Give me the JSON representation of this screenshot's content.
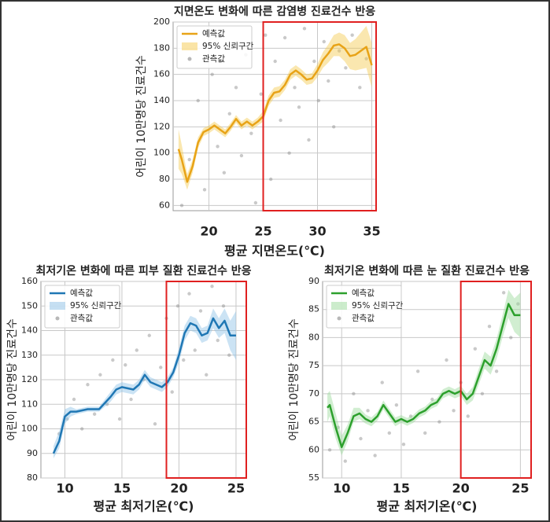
{
  "chart_data": [
    {
      "type": "line",
      "title": "지면온도 변화에 따른 감염병 진료건수 반응",
      "xlabel": "평균 지면온도(℃)",
      "ylabel": "어린이 10만명당 진료건수",
      "xlim": [
        16.7,
        35.4
      ],
      "ylim": [
        56,
        200
      ],
      "xticks": [
        20,
        25,
        30,
        35
      ],
      "yticks": [
        60,
        80,
        100,
        120,
        140,
        160,
        180,
        200
      ],
      "grid": true,
      "legend": "upper left",
      "highlight_from": 25,
      "highlight_color": "#e02020",
      "series": [
        {
          "name": "예측값",
          "type": "line",
          "color": "#e8a317",
          "x": [
            17.2,
            17.5,
            18,
            18.5,
            19,
            19.5,
            20,
            20.5,
            21,
            21.5,
            22,
            22.5,
            23,
            23.5,
            24,
            24.5,
            25,
            25.5,
            26,
            26.5,
            27,
            27.5,
            28,
            28.5,
            29,
            29.5,
            30,
            30.5,
            31,
            31.5,
            32,
            32.5,
            33,
            33.5,
            34,
            34.5,
            35
          ],
          "values": [
            103,
            95,
            78,
            90,
            108,
            116,
            118,
            121,
            118,
            115,
            120,
            126,
            121,
            124,
            121,
            124,
            128,
            140,
            146,
            147,
            152,
            160,
            163,
            160,
            156,
            157,
            163,
            171,
            176,
            182,
            183,
            180,
            174,
            175,
            178,
            181,
            167
          ]
        },
        {
          "name": "95% 신뢰구간",
          "type": "band",
          "color": "#f5c94e",
          "x": [
            17.2,
            17.5,
            18,
            18.5,
            19,
            19.5,
            20,
            20.5,
            21,
            21.5,
            22,
            22.5,
            23,
            23.5,
            24,
            24.5,
            25,
            25.5,
            26,
            26.5,
            27,
            27.5,
            28,
            28.5,
            29,
            29.5,
            30,
            30.5,
            31,
            31.5,
            32,
            32.5,
            33,
            33.5,
            34,
            34.5,
            35
          ],
          "lower": [
            88,
            84,
            72,
            85,
            104,
            113,
            115,
            118,
            115,
            112,
            117,
            123,
            118,
            121,
            118,
            121,
            124,
            136,
            142,
            143,
            148,
            156,
            159,
            156,
            152,
            153,
            158,
            165,
            169,
            174,
            174,
            170,
            164,
            163,
            164,
            165,
            150
          ],
          "upper": [
            118,
            106,
            84,
            95,
            112,
            119,
            121,
            124,
            121,
            118,
            123,
            129,
            124,
            127,
            124,
            127,
            132,
            144,
            150,
            151,
            156,
            164,
            167,
            164,
            160,
            161,
            168,
            177,
            183,
            190,
            192,
            190,
            184,
            187,
            192,
            197,
            184
          ]
        },
        {
          "name": "관측값",
          "type": "scatter",
          "color": "#888888",
          "x": [
            17.5,
            18.2,
            19,
            19.6,
            20.3,
            20.8,
            21.4,
            21.9,
            22.5,
            23,
            23.4,
            23.9,
            24.3,
            24.8,
            25.2,
            25.7,
            26.1,
            26.6,
            27,
            27.4,
            27.9,
            28.3,
            28.8,
            29.2,
            29.7,
            30.1,
            30.6,
            31,
            31.5,
            32,
            32.6,
            33.2,
            33.9,
            34.5
          ],
          "values": [
            60,
            95,
            140,
            72,
            160,
            105,
            85,
            130,
            150,
            98,
            175,
            115,
            62,
            145,
            190,
            80,
            170,
            125,
            188,
            100,
            150,
            135,
            195,
            110,
            170,
            140,
            185,
            155,
            120,
            178,
            165,
            190,
            150,
            172
          ]
        }
      ]
    },
    {
      "type": "line",
      "title": "최저기온 변화에 따른 피부 질환 진료건수 반응",
      "xlabel": "평균 최저기온(℃)",
      "ylabel": "어린이 10만명당 진료건수",
      "xlim": [
        7.9,
        25.9
      ],
      "ylim": [
        80,
        160
      ],
      "xticks": [
        10,
        15,
        20,
        25
      ],
      "yticks": [
        80,
        90,
        100,
        110,
        120,
        130,
        140,
        150,
        160
      ],
      "grid": true,
      "legend": "upper left",
      "highlight_from": 18.9,
      "highlight_color": "#e02020",
      "series": [
        {
          "name": "예측값",
          "type": "line",
          "color": "#1f77b4",
          "x": [
            9,
            9.5,
            10,
            10.5,
            11,
            12,
            13,
            14,
            14.5,
            15,
            16,
            16.5,
            17,
            17.5,
            18,
            18.5,
            19,
            19.5,
            20,
            20.5,
            21,
            21.5,
            22,
            22.5,
            23,
            23.5,
            24,
            24.5,
            25
          ],
          "values": [
            90,
            95,
            105,
            107,
            107,
            108,
            108,
            113,
            116,
            117,
            116,
            118,
            122,
            119,
            118,
            117,
            119,
            123,
            130,
            139,
            143,
            142,
            138,
            139,
            145,
            141,
            144,
            138,
            138
          ]
        },
        {
          "name": "95% 신뢰구간",
          "type": "band",
          "color": "#8cc0e6",
          "x": [
            9,
            9.5,
            10,
            10.5,
            11,
            12,
            13,
            14,
            14.5,
            15,
            16,
            16.5,
            17,
            17.5,
            18,
            18.5,
            19,
            19.5,
            20,
            20.5,
            21,
            21.5,
            22,
            22.5,
            23,
            23.5,
            24,
            24.5,
            25
          ],
          "lower": [
            88,
            92,
            102,
            105,
            106,
            107,
            107,
            111,
            114,
            115,
            114,
            116,
            120,
            117,
            116,
            115,
            117,
            121,
            127,
            136,
            140,
            139,
            135,
            136,
            141,
            137,
            139,
            132,
            128
          ],
          "upper": [
            93,
            99,
            108,
            109,
            108,
            109,
            109,
            115,
            118,
            119,
            118,
            120,
            124,
            121,
            120,
            119,
            121,
            125,
            133,
            142,
            146,
            145,
            141,
            142,
            149,
            145,
            149,
            144,
            148
          ]
        },
        {
          "name": "관측값",
          "type": "scatter",
          "color": "#888888",
          "x": [
            9.5,
            10.2,
            10.8,
            11.5,
            12,
            12.6,
            13.1,
            13.7,
            14.2,
            14.8,
            15.3,
            15.8,
            16.3,
            16.9,
            17.4,
            17.9,
            18.4,
            18.9,
            19.4,
            19.9,
            20.4,
            20.9,
            21.4,
            21.9,
            22.4,
            22.9,
            23.4,
            23.9,
            24.4
          ],
          "values": [
            98,
            104,
            112,
            100,
            118,
            106,
            122,
            110,
            128,
            104,
            126,
            112,
            132,
            120,
            138,
            102,
            125,
            145,
            115,
            150,
            128,
            155,
            132,
            148,
            122,
            158,
            136,
            150,
            130
          ]
        }
      ]
    },
    {
      "type": "line",
      "title": "최저기온 변화에 따른 눈 질환 진료건수 반응",
      "xlabel": "평균 최저기온(℃)",
      "ylabel": "어린이 10만명당 진료건수",
      "xlim": [
        8.4,
        25.9
      ],
      "ylim": [
        55,
        90
      ],
      "xticks": [
        10,
        15,
        20,
        25
      ],
      "yticks": [
        55,
        60,
        65,
        70,
        75,
        80,
        85,
        90
      ],
      "grid": true,
      "legend": "upper left",
      "highlight_from": 20,
      "highlight_color": "#e02020",
      "series": [
        {
          "name": "예측값",
          "type": "line",
          "color": "#2ca02c",
          "x": [
            8.8,
            9,
            9.5,
            10,
            10.5,
            11,
            11.5,
            12,
            12.5,
            13,
            13.5,
            14,
            14.5,
            15,
            15.5,
            16,
            16.5,
            17,
            17.5,
            18,
            18.5,
            19,
            19.5,
            20,
            20.5,
            21,
            21.5,
            22,
            22.5,
            23,
            23.5,
            24,
            24.5,
            25
          ],
          "values": [
            67.5,
            68,
            64,
            60.5,
            63,
            66,
            66.5,
            65.5,
            65,
            66,
            68,
            66.5,
            65,
            65.5,
            65,
            65.5,
            66.5,
            67,
            68,
            68.5,
            70,
            70.5,
            70,
            70.5,
            69,
            70,
            73,
            76,
            75,
            78,
            82,
            86,
            84,
            84
          ]
        },
        {
          "name": "95% 신뢰구간",
          "type": "band",
          "color": "#9ad99a",
          "x": [
            8.8,
            9,
            9.5,
            10,
            10.5,
            11,
            11.5,
            12,
            12.5,
            13,
            13.5,
            14,
            14.5,
            15,
            15.5,
            16,
            16.5,
            17,
            17.5,
            18,
            18.5,
            19,
            19.5,
            20,
            20.5,
            21,
            21.5,
            22,
            22.5,
            23,
            23.5,
            24,
            24.5,
            25
          ],
          "lower": [
            65,
            66,
            62,
            59,
            61.5,
            65,
            65.5,
            64.7,
            64.2,
            65.2,
            67.2,
            65.7,
            64.2,
            64.8,
            64.3,
            64.8,
            65.8,
            66.3,
            67.3,
            67.8,
            69.2,
            69.7,
            69.2,
            69.6,
            68,
            68.8,
            71.6,
            74.5,
            73.4,
            76.2,
            80,
            83.5,
            81,
            80
          ],
          "upper": [
            70,
            70.5,
            66.5,
            62.5,
            64.5,
            67.5,
            67.5,
            66.3,
            65.8,
            66.8,
            68.8,
            67.3,
            65.8,
            66.2,
            65.7,
            66.2,
            67.2,
            67.7,
            68.7,
            69.2,
            70.8,
            71.3,
            70.8,
            71.4,
            70,
            71.2,
            74.4,
            77.5,
            76.6,
            79.8,
            84,
            88.5,
            87,
            88
          ]
        },
        {
          "name": "관측값",
          "type": "scatter",
          "color": "#888888",
          "x": [
            9,
            9.7,
            10.3,
            11,
            11.6,
            12.2,
            12.8,
            13.4,
            14,
            14.6,
            15.2,
            15.8,
            16.4,
            17,
            17.6,
            18.2,
            18.8,
            19.4,
            20,
            20.6,
            21.2,
            21.8,
            22.4,
            23,
            23.6,
            24.2,
            24.8
          ],
          "values": [
            60,
            64,
            58,
            70,
            62,
            67,
            59,
            72,
            63,
            68,
            61,
            66,
            74,
            63,
            69,
            65,
            76,
            67,
            72,
            66,
            78,
            70,
            82,
            74,
            88,
            80,
            86
          ]
        }
      ]
    }
  ]
}
